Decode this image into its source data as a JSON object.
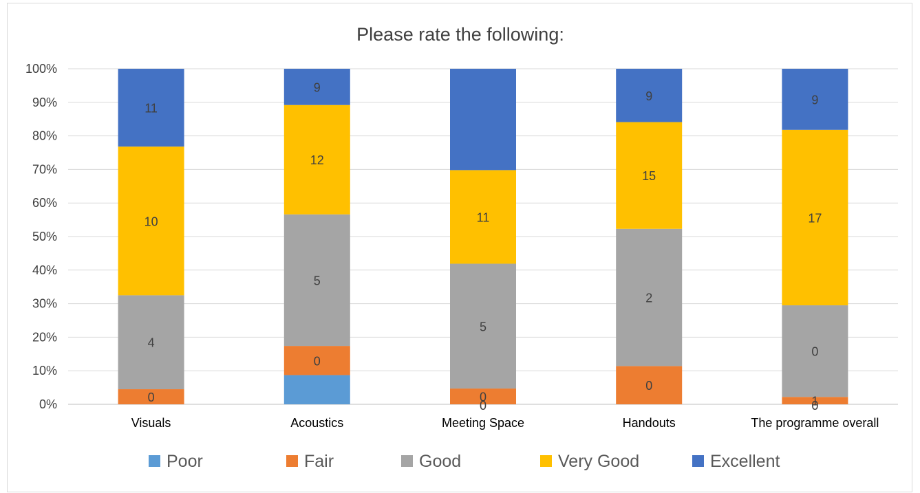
{
  "chart_data": {
    "type": "bar",
    "stacked": "percent",
    "title": "Please rate the following:",
    "categories": [
      "Visuals",
      "Acoustics",
      "Meeting Space",
      "Handouts",
      "The programme overall"
    ],
    "y_ticks": [
      "0%",
      "10%",
      "20%",
      "30%",
      "40%",
      "50%",
      "60%",
      "70%",
      "80%",
      "90%",
      "100%"
    ],
    "ylim": [
      0,
      100
    ],
    "grid": true,
    "legend_position": "bottom",
    "series": [
      {
        "name": "Poor",
        "color": "#5b9bd5",
        "percent": [
          0,
          8.7,
          0,
          0,
          0
        ],
        "labels": [
          "",
          "",
          "",
          "",
          ""
        ]
      },
      {
        "name": "Fair",
        "color": "#ed7d31",
        "percent": [
          4.5,
          8.7,
          4.7,
          11.4,
          2.2
        ],
        "labels": [
          "0",
          "0",
          "0",
          "0",
          "1"
        ]
      },
      {
        "name": "Good",
        "color": "#a5a5a5",
        "percent": [
          28.0,
          39.2,
          37.2,
          40.9,
          27.3
        ],
        "labels": [
          "4",
          "5",
          "5",
          "2",
          "0"
        ]
      },
      {
        "name": "Very Good",
        "color": "#ffc000",
        "percent": [
          44.3,
          32.6,
          27.9,
          31.8,
          52.3
        ],
        "labels": [
          "10",
          "12",
          "11",
          "15",
          "17"
        ]
      },
      {
        "name": "Excellent",
        "color": "#4472c4",
        "percent": [
          23.2,
          10.8,
          30.2,
          15.9,
          18.2
        ],
        "labels": [
          "11",
          "9",
          "",
          "9",
          "9"
        ]
      }
    ],
    "extra_labels": [
      {
        "category_index": 2,
        "series_index": 1,
        "text": "0"
      },
      {
        "category_index": 4,
        "series_index": 1,
        "text": "0"
      }
    ]
  }
}
